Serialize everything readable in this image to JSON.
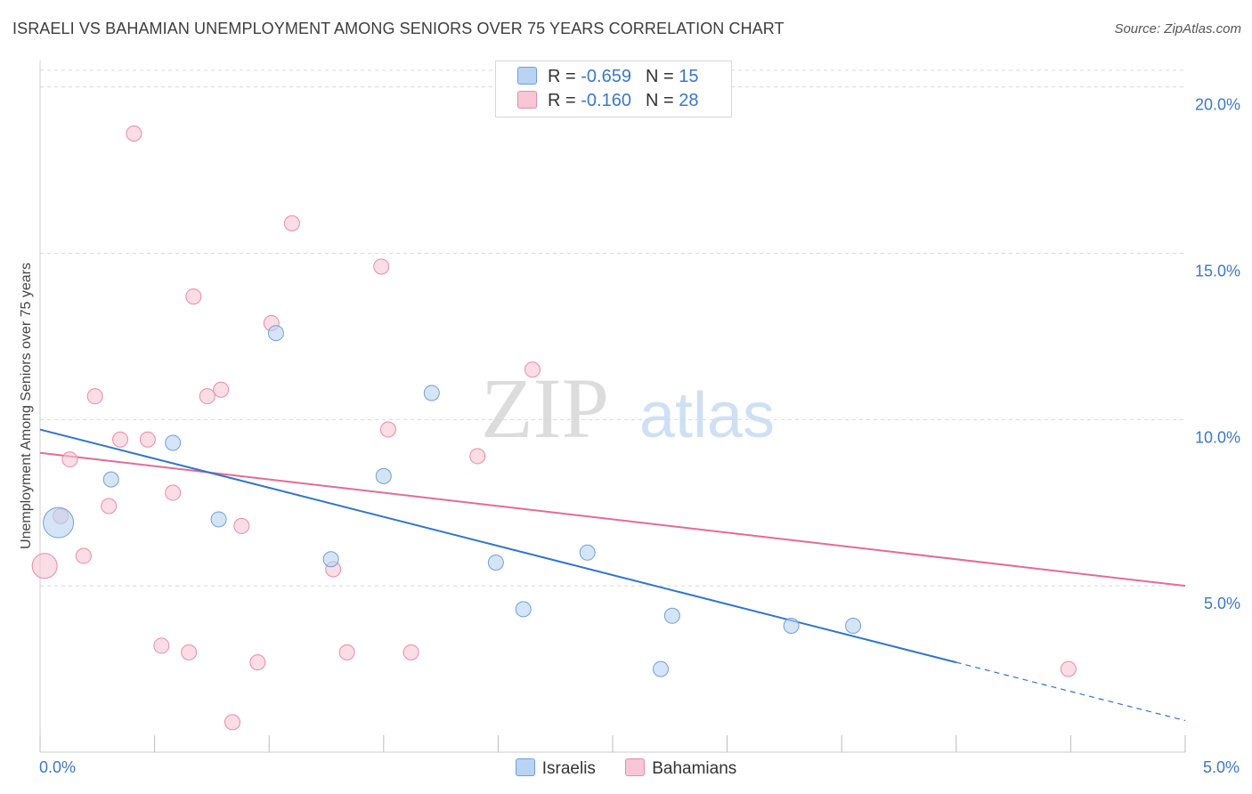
{
  "header": {
    "title": "ISRAELI VS BAHAMIAN UNEMPLOYMENT AMONG SENIORS OVER 75 YEARS CORRELATION CHART",
    "source": "Source: ZipAtlas.com"
  },
  "watermark": {
    "zip": "ZIP",
    "atlas": "atlas"
  },
  "legend": {
    "rows": [
      {
        "r_label": "R =",
        "r_value": "-0.659",
        "n_label": "N =",
        "n_value": "15"
      },
      {
        "r_label": "R =",
        "r_value": "-0.160",
        "n_label": "N =",
        "n_value": "28"
      }
    ]
  },
  "bottom_legend": {
    "israelis": "Israelis",
    "bahamians": "Bahamians"
  },
  "x_axis": {
    "min_label": "0.0%",
    "max_label": "5.0%"
  },
  "colors": {
    "israelis_fill": "#b8d3f3",
    "israelis_stroke": "#6e9fdb",
    "israelis_line": "#2f74d0",
    "bahamians_fill": "#f8c6d4",
    "bahamians_stroke": "#ea8aa8",
    "bahamians_line": "#e56b94",
    "tick_label": "#3a78c9",
    "grid": "#d8d8d8"
  },
  "chart_data": {
    "type": "scatter",
    "title": "ISRAELI VS BAHAMIAN UNEMPLOYMENT AMONG SENIORS OVER 75 YEARS CORRELATION CHART",
    "xlabel": "",
    "ylabel": "Unemployment Among Seniors over 75 years",
    "xlim": [
      0,
      5
    ],
    "ylim": [
      0,
      20.5
    ],
    "y_ticks": [
      5,
      10,
      15,
      20
    ],
    "y_tick_labels": [
      "5.0%",
      "10.0%",
      "15.0%",
      "20.0%"
    ],
    "grid": "horizontal dashed",
    "series": [
      {
        "name": "Israelis",
        "points": [
          {
            "x": 0.08,
            "y": 6.9,
            "size": "large"
          },
          {
            "x": 0.31,
            "y": 8.2
          },
          {
            "x": 0.58,
            "y": 9.3
          },
          {
            "x": 0.78,
            "y": 7.0
          },
          {
            "x": 1.03,
            "y": 12.6
          },
          {
            "x": 1.27,
            "y": 5.8
          },
          {
            "x": 1.5,
            "y": 8.3
          },
          {
            "x": 1.71,
            "y": 10.8
          },
          {
            "x": 1.99,
            "y": 5.7
          },
          {
            "x": 2.11,
            "y": 4.3
          },
          {
            "x": 2.39,
            "y": 6.0
          },
          {
            "x": 2.71,
            "y": 2.5
          },
          {
            "x": 2.76,
            "y": 4.1
          },
          {
            "x": 3.28,
            "y": 3.8
          },
          {
            "x": 3.55,
            "y": 3.8
          }
        ],
        "trend": {
          "x0": 0,
          "y0": 9.7,
          "x1": 4.0,
          "y1": 2.7,
          "dashed_to_x": 5.0,
          "dashed_to_y": 0.95
        }
      },
      {
        "name": "Bahamians",
        "points": [
          {
            "x": 0.02,
            "y": 5.6,
            "size": "large"
          },
          {
            "x": 0.09,
            "y": 7.1
          },
          {
            "x": 0.13,
            "y": 8.8
          },
          {
            "x": 0.19,
            "y": 5.9
          },
          {
            "x": 0.24,
            "y": 10.7
          },
          {
            "x": 0.3,
            "y": 7.4
          },
          {
            "x": 0.35,
            "y": 9.4
          },
          {
            "x": 0.41,
            "y": 18.6
          },
          {
            "x": 0.47,
            "y": 9.4
          },
          {
            "x": 0.53,
            "y": 3.2
          },
          {
            "x": 0.58,
            "y": 7.8
          },
          {
            "x": 0.65,
            "y": 3.0
          },
          {
            "x": 0.67,
            "y": 13.7
          },
          {
            "x": 0.73,
            "y": 10.7
          },
          {
            "x": 0.79,
            "y": 10.9
          },
          {
            "x": 0.84,
            "y": 0.9
          },
          {
            "x": 0.88,
            "y": 6.8
          },
          {
            "x": 0.95,
            "y": 2.7
          },
          {
            "x": 1.01,
            "y": 12.9
          },
          {
            "x": 1.1,
            "y": 15.9
          },
          {
            "x": 1.28,
            "y": 5.5
          },
          {
            "x": 1.34,
            "y": 3.0
          },
          {
            "x": 1.49,
            "y": 14.6
          },
          {
            "x": 1.52,
            "y": 9.7
          },
          {
            "x": 1.62,
            "y": 3.0
          },
          {
            "x": 1.91,
            "y": 8.9
          },
          {
            "x": 2.15,
            "y": 11.5
          },
          {
            "x": 4.49,
            "y": 2.5
          }
        ],
        "trend": {
          "x0": 0,
          "y0": 9.0,
          "x1": 5.0,
          "y1": 5.0
        }
      }
    ]
  }
}
